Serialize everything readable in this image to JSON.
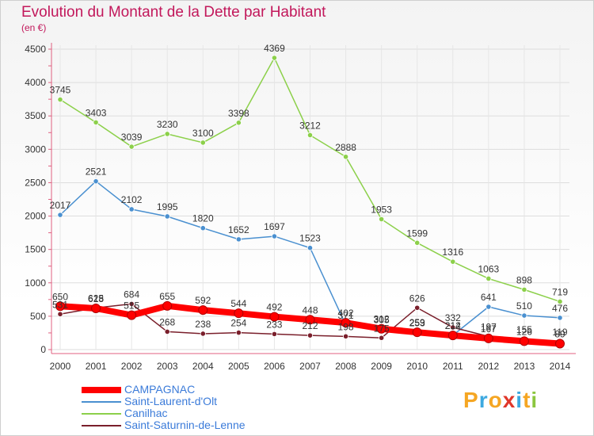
{
  "title": "Evolution du Montant de la Dette par Habitant",
  "subtitle": "(en €)",
  "logo": {
    "text": "Proxiti",
    "colors": [
      "#f5a623",
      "#3da9e0",
      "#f5a623",
      "#e0372a",
      "#3da9e0",
      "#f5a623",
      "#8cc63f"
    ]
  },
  "chart_data": {
    "type": "line",
    "x": [
      2000,
      2001,
      2002,
      2003,
      2004,
      2005,
      2006,
      2007,
      2008,
      2009,
      2010,
      2011,
      2012,
      2013,
      2014
    ],
    "ylim": [
      0,
      4500
    ],
    "yticks": [
      0,
      500,
      1000,
      1500,
      2000,
      2500,
      3000,
      3500,
      4000,
      4500
    ],
    "grid": true,
    "legend_position": "bottom-left",
    "series": [
      {
        "name": "CAMPAGNAC",
        "color": "#ff0000",
        "values": [
          650,
          618,
          515,
          655,
          592,
          544,
          492,
          448,
          402,
          312,
          259,
          212,
          167,
          126,
          89
        ]
      },
      {
        "name": "Saint-Laurent-d'Olt",
        "color": "#4a90d0",
        "values": [
          2017,
          2521,
          2102,
          1995,
          1820,
          1652,
          1697,
          1523,
          371,
          305,
          253,
          214,
          641,
          510,
          476
        ]
      },
      {
        "name": "Canilhac",
        "color": "#8cd04a",
        "values": [
          3745,
          3403,
          3039,
          3230,
          3100,
          3398,
          4369,
          3212,
          2888,
          1953,
          1599,
          1316,
          1063,
          898,
          719
        ]
      },
      {
        "name": "Saint-Saturnin-de-Lenne",
        "color": "#7a1f2b",
        "values": [
          531,
          625,
          684,
          268,
          238,
          254,
          233,
          212,
          198,
          175,
          626,
          332,
          197,
          155,
          119
        ]
      }
    ]
  }
}
